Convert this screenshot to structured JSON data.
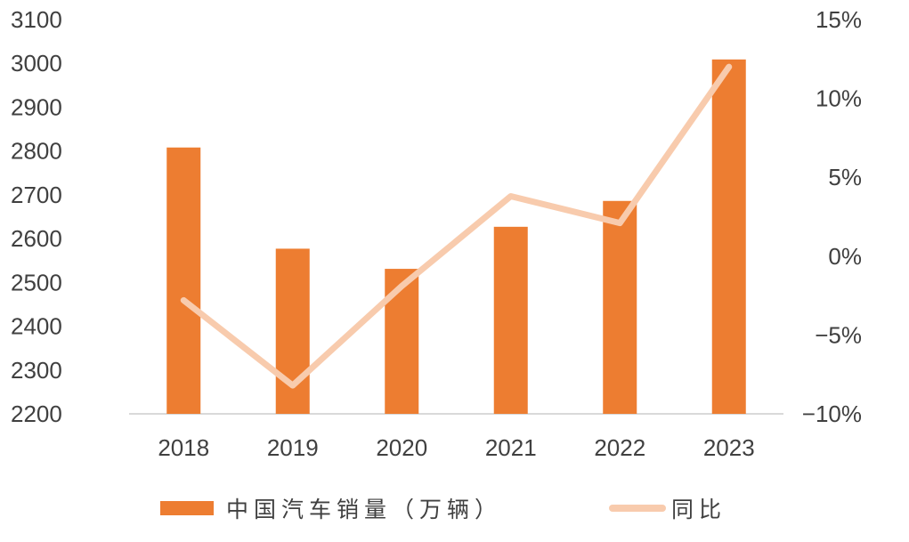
{
  "chart_data": {
    "type": "bar",
    "categories": [
      "2018",
      "2019",
      "2020",
      "2021",
      "2022",
      "2023"
    ],
    "series": [
      {
        "name": "中国汽车销量（万辆）",
        "type": "bar",
        "axis": "left",
        "values": [
          2808,
          2577,
          2531,
          2627,
          2686,
          3009
        ]
      },
      {
        "name": "同比",
        "type": "line",
        "axis": "right",
        "values": [
          -2.8,
          -8.2,
          -1.9,
          3.8,
          2.1,
          12.0
        ]
      }
    ],
    "ylim": [
      2200,
      3100
    ],
    "yticks": [
      "2200",
      "2300",
      "2400",
      "2500",
      "2600",
      "2700",
      "2800",
      "2900",
      "3000",
      "3100"
    ],
    "y2lim": [
      -10,
      15
    ],
    "y2ticks": [
      "-10%",
      "-5%",
      "0%",
      "5%",
      "10%",
      "15%"
    ],
    "grid": false,
    "legend": "bottom",
    "colors": {
      "bar": "#ED7D31",
      "line": "#F8CBAD"
    }
  }
}
